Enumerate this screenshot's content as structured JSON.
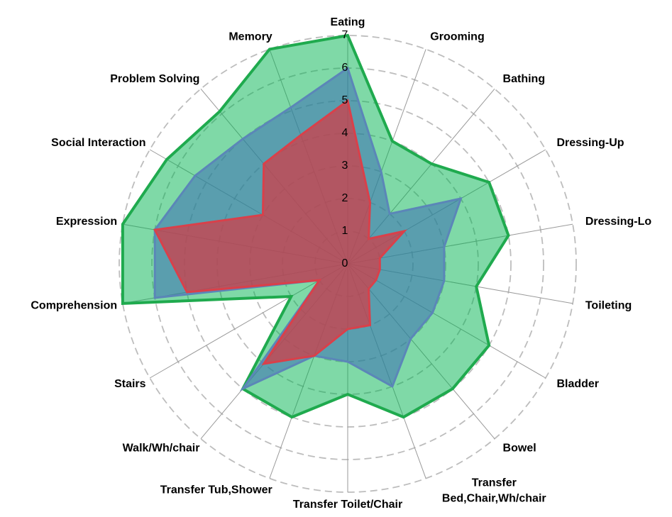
{
  "chart_data": {
    "type": "radar",
    "categories": [
      "Eating",
      "Grooming",
      "Bathing",
      "Dressing-Up",
      "Dressing-Lo",
      "Toileting",
      "Bladder",
      "Bowel",
      "Transfer\nBed,Chair,Wh/chair",
      "Transfer Toilet/Chair",
      "Transfer Tub,Shower",
      "Walk/Wh/chair",
      "Stairs",
      "Comprehension",
      "Expression",
      "Social Interaction",
      "Problem Solving",
      "Memory"
    ],
    "series": [
      {
        "color": "#1faa4e",
        "fill": "rgba(0,180,80,0.5)",
        "values": [
          7,
          4,
          4,
          5,
          5,
          4,
          5,
          5,
          5,
          4,
          5,
          5,
          2,
          7,
          7,
          6.4,
          6.1,
          7
        ]
      },
      {
        "color": "#5b86b8",
        "fill": "rgba(60,110,180,0.55)",
        "values": [
          6,
          3,
          2,
          4,
          3,
          3,
          3,
          3,
          4,
          3,
          3,
          5,
          1,
          6,
          6,
          5.4,
          5,
          5.1
        ]
      },
      {
        "color": "#d9404a",
        "fill": "rgba(215,55,65,0.7)",
        "values": [
          5,
          2,
          1,
          2,
          1,
          1,
          1,
          1,
          2,
          2,
          3,
          4,
          1,
          5,
          6,
          3,
          4,
          4.2
        ]
      }
    ],
    "rlim": [
      0,
      7
    ],
    "rticks": [
      0,
      1,
      2,
      3,
      4,
      5,
      6,
      7
    ],
    "grid": true
  }
}
